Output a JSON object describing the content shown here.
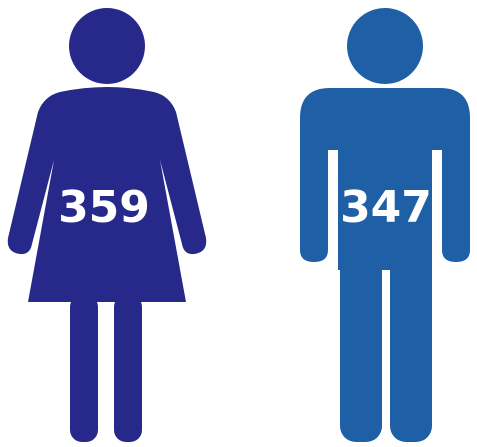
{
  "figures": [
    {
      "value": 359,
      "color": "#27298a"
    },
    {
      "value": 347,
      "color": "#1f5fa6"
    }
  ]
}
